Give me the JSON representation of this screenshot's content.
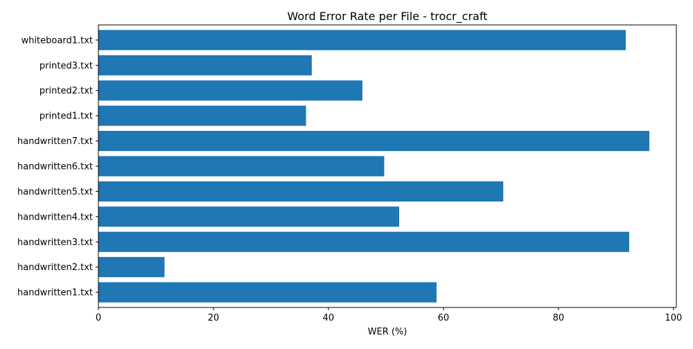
{
  "chart_data": {
    "type": "bar",
    "orientation": "horizontal",
    "title": "Word Error Rate per File - trocr_craft",
    "xlabel": "WER (%)",
    "ylabel": "",
    "xlim": [
      0,
      100.5
    ],
    "xticks": [
      0,
      20,
      40,
      60,
      80,
      100
    ],
    "grid": false,
    "bar_color": "#1f77b4",
    "categories": [
      "handwritten1.txt",
      "handwritten2.txt",
      "handwritten3.txt",
      "handwritten4.txt",
      "handwritten5.txt",
      "handwritten6.txt",
      "handwritten7.txt",
      "printed1.txt",
      "printed2.txt",
      "printed3.txt",
      "whiteboard1.txt"
    ],
    "values": [
      58.8,
      11.5,
      92.3,
      52.3,
      70.4,
      49.7,
      95.8,
      36.1,
      45.9,
      37.1,
      91.7
    ]
  }
}
